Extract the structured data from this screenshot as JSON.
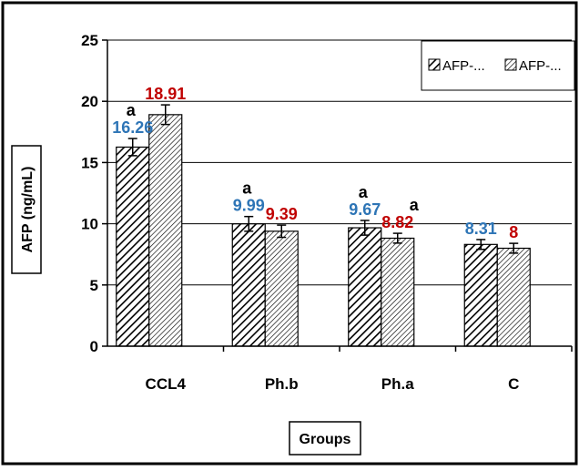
{
  "chart_data": {
    "type": "bar",
    "title": "",
    "xlabel": "Groups",
    "ylabel": "AFP (ng/mL)",
    "ylim": [
      0,
      25
    ],
    "yticks": [
      "0",
      "5",
      "10",
      "15",
      "20",
      "25"
    ],
    "categories": [
      "CCL4",
      "Ph.b",
      "Ph.a",
      "C"
    ],
    "grid": true,
    "legend_position": "top-right",
    "series": [
      {
        "name": "AFP-...",
        "pattern": "dense-diagonal-hatch",
        "label_color": "#2e75b6",
        "values": [
          16.26,
          9.99,
          9.67,
          8.31
        ],
        "value_labels": [
          "16.26",
          "9.99",
          "9.67",
          "8.31"
        ],
        "errors": [
          0.7,
          0.6,
          0.6,
          0.4
        ]
      },
      {
        "name": "AFP-...",
        "pattern": "light-diagonal-hatch",
        "label_color": "#c00000",
        "values": [
          18.91,
          9.39,
          8.82,
          8.0
        ],
        "value_labels": [
          "18.91",
          "9.39",
          "8.82",
          "8"
        ],
        "errors": [
          0.8,
          0.5,
          0.4,
          0.4
        ]
      }
    ],
    "annotations": [
      {
        "text": "a",
        "category": "CCL4",
        "series": 0
      },
      {
        "text": "a",
        "category": "Ph.b",
        "series": 0
      },
      {
        "text": "a",
        "category": "Ph.a",
        "series": 0
      },
      {
        "text": "a",
        "category": "Ph.a",
        "series": 1
      }
    ]
  }
}
